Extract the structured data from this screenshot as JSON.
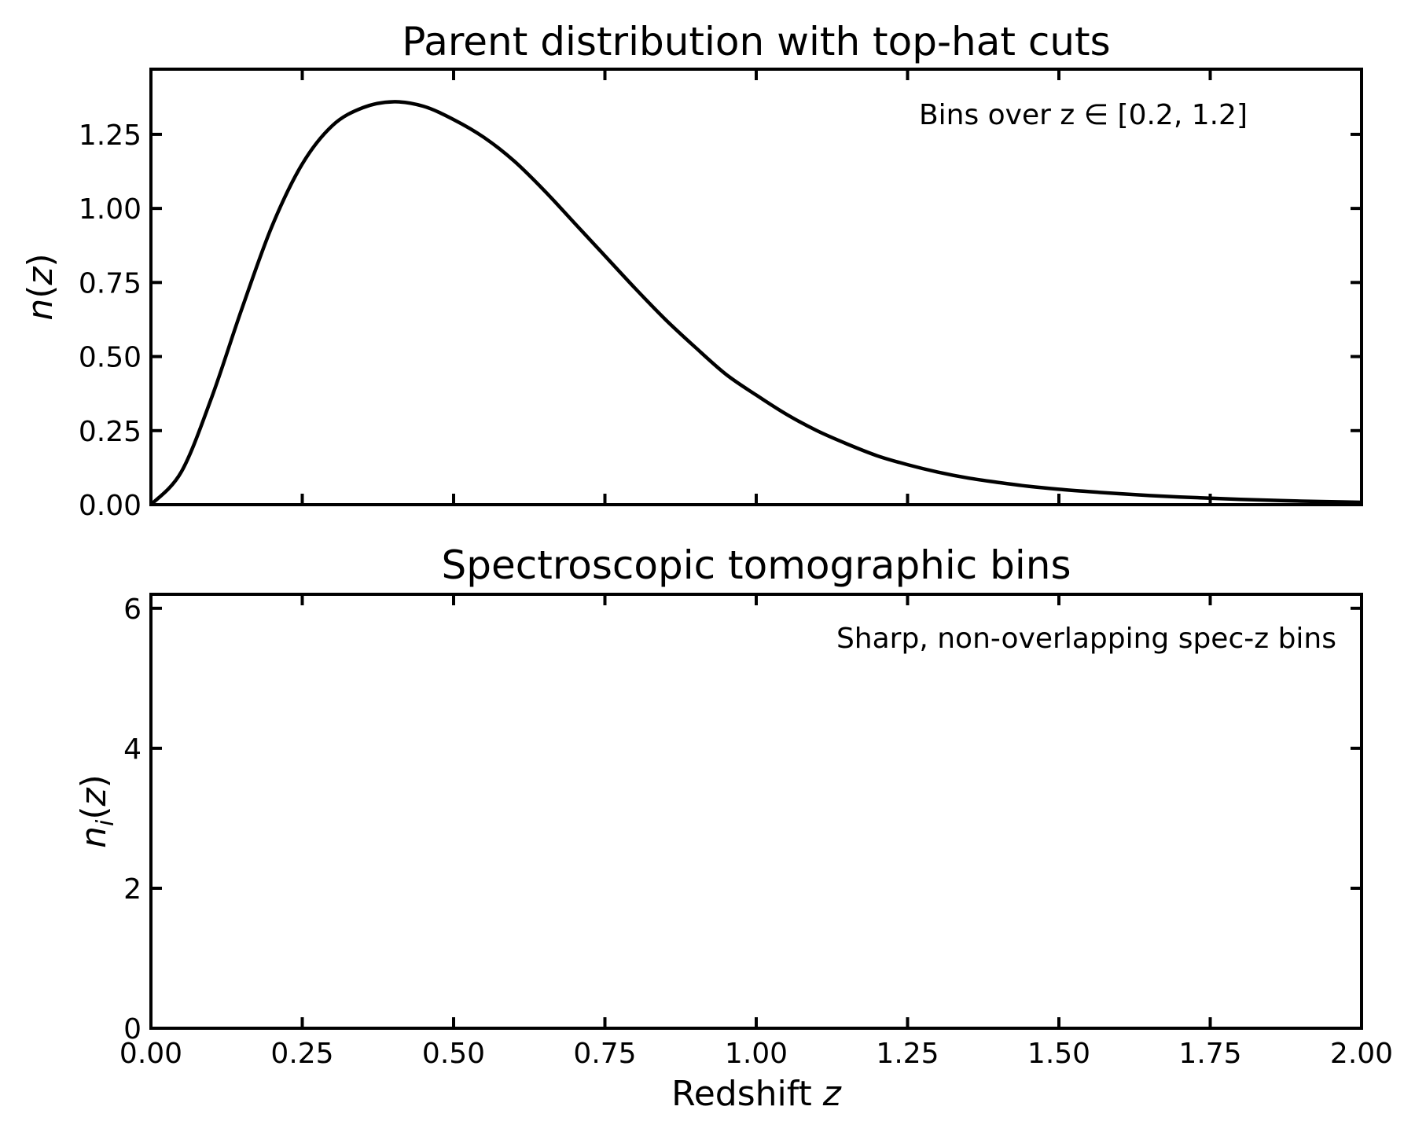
{
  "chart_data": [
    {
      "type": "line",
      "title": "Parent distribution with top-hat cuts",
      "xlabel": "",
      "ylabel": "n(z)",
      "annotation": "Bins over z ∈ [0.2, 1.2]",
      "xlim": [
        0,
        2
      ],
      "ylim": [
        0,
        1.47
      ],
      "x_ticks": [
        "0.00",
        "0.25",
        "0.50",
        "0.75",
        "1.00",
        "1.25",
        "1.50",
        "1.75",
        "2.00"
      ],
      "x_tick_labels_visible": false,
      "y_ticks": [
        "0.00",
        "0.25",
        "0.50",
        "0.75",
        "1.00",
        "1.25"
      ],
      "grid": false,
      "series": [
        {
          "color": "#000000",
          "x": [
            0,
            0.05,
            0.1,
            0.15,
            0.2,
            0.25,
            0.3,
            0.35,
            0.4,
            0.45,
            0.5,
            0.55,
            0.6,
            0.65,
            0.7,
            0.75,
            0.8,
            0.85,
            0.9,
            0.95,
            1.0,
            1.05,
            1.1,
            1.15,
            1.2,
            1.25,
            1.3,
            1.35,
            1.4,
            1.45,
            1.5,
            1.55,
            1.6,
            1.65,
            1.7,
            1.75,
            1.8,
            1.85,
            1.9,
            1.95,
            2.0
          ],
          "y": [
            0.0,
            0.11,
            0.36,
            0.66,
            0.94,
            1.15,
            1.28,
            1.34,
            1.36,
            1.345,
            1.3,
            1.24,
            1.16,
            1.06,
            0.95,
            0.84,
            0.73,
            0.625,
            0.53,
            0.44,
            0.37,
            0.305,
            0.25,
            0.205,
            0.165,
            0.135,
            0.11,
            0.09,
            0.075,
            0.062,
            0.052,
            0.044,
            0.037,
            0.031,
            0.026,
            0.022,
            0.018,
            0.015,
            0.012,
            0.01,
            0.008
          ]
        }
      ]
    },
    {
      "type": "line",
      "title": "Spectroscopic tomographic bins",
      "xlabel": "Redshift z",
      "ylabel": "n_i(z)",
      "annotation": "Sharp, non-overlapping spec-z bins",
      "xlim": [
        0,
        2
      ],
      "ylim": [
        0,
        6.2
      ],
      "x_ticks": [
        "0.00",
        "0.25",
        "0.50",
        "0.75",
        "1.00",
        "1.25",
        "1.50",
        "1.75",
        "2.00"
      ],
      "y_ticks": [
        "0",
        "2",
        "4",
        "6"
      ],
      "grid": false,
      "series": []
    }
  ]
}
